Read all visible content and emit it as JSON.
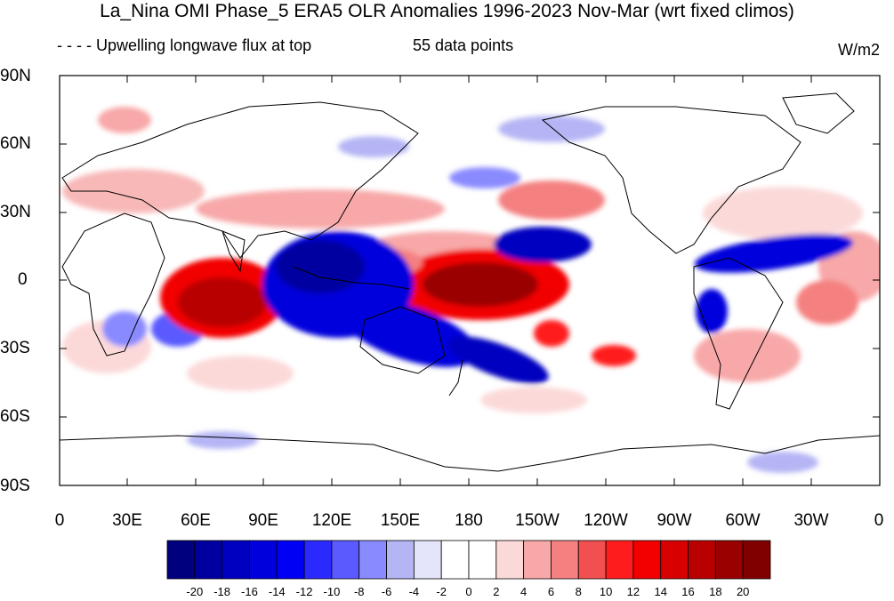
{
  "title": "La_Nina OMI Phase_5 ERA5 OLR Anomalies 1996-2023 Nov-Mar (wrt fixed climos)",
  "legend_line": "- - - - Upwelling longwave flux at top",
  "data_points": "55 data points",
  "units": "W/m2",
  "y_ticks": [
    "90N",
    "60N",
    "30N",
    "0",
    "30S",
    "60S",
    "90S"
  ],
  "x_ticks": [
    "0",
    "30E",
    "60E",
    "90E",
    "120E",
    "150E",
    "180",
    "150W",
    "120W",
    "90W",
    "60W",
    "30W",
    "0"
  ],
  "colorbar": {
    "labels": [
      "-20",
      "-18",
      "-16",
      "-14",
      "-12",
      "-10",
      "-8",
      "-6",
      "-4",
      "-2",
      "0",
      "2",
      "4",
      "6",
      "8",
      "10",
      "12",
      "14",
      "16",
      "18",
      "20"
    ],
    "colors": [
      "#00007f",
      "#0000a0",
      "#0000c0",
      "#0000dc",
      "#0000f5",
      "#2a2aff",
      "#5a5aff",
      "#8a8aff",
      "#b5b5f5",
      "#e4e4fa",
      "#ffffff",
      "#ffffff",
      "#fcd9d9",
      "#f8a8a8",
      "#f58080",
      "#f25050",
      "#ff1c1c",
      "#f20000",
      "#d80000",
      "#b80000",
      "#9a0000",
      "#800000"
    ]
  }
}
